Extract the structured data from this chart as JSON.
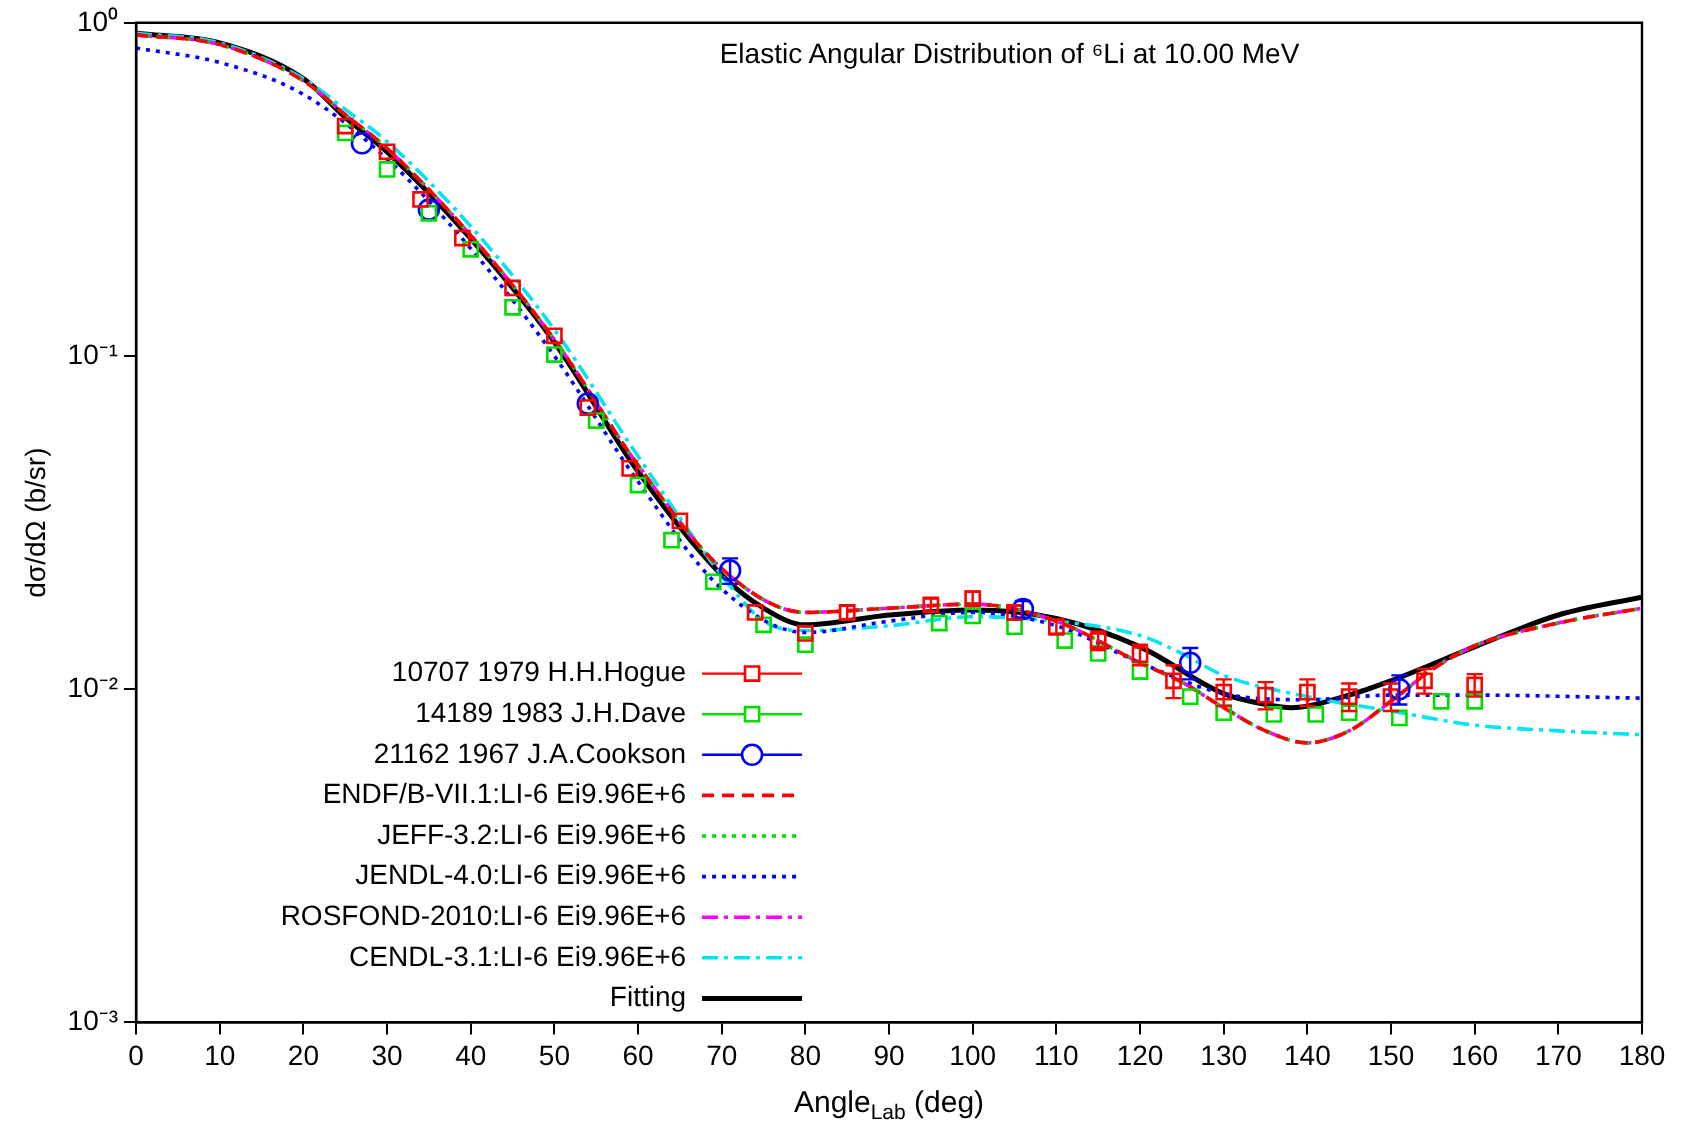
{
  "chart_data": {
    "type": "scatter",
    "title": "Elastic Angular Distribution of ⁶Li at 10.00 MeV",
    "xlabel": "Angle$_{Lab}$ (deg)",
    "ylabel": "dσ/dΩ (b/sr)",
    "xlim": [
      0,
      180
    ],
    "xticks": [
      0,
      10,
      20,
      30,
      40,
      50,
      60,
      70,
      80,
      90,
      100,
      110,
      120,
      130,
      140,
      150,
      160,
      170,
      180
    ],
    "ylim": [
      0.001,
      1
    ],
    "yticks": [
      {
        "value": 0.001,
        "label": "10⁻³"
      },
      {
        "value": 0.01,
        "label": "10⁻²"
      },
      {
        "value": 0.1,
        "label": "10⁻¹"
      },
      {
        "value": 1,
        "label": "10⁰"
      }
    ],
    "log": "y",
    "grid": false,
    "legend": "bottom left",
    "series": [
      {
        "name": "10707 1979 H.H.Hogue",
        "marker": "square",
        "color": "#ff0000",
        "x": [
          25,
          30,
          34,
          39,
          45,
          50,
          54,
          59,
          65,
          74,
          80,
          85,
          95,
          100,
          105,
          110,
          115,
          120,
          124,
          130,
          135,
          140,
          145,
          150,
          154,
          160
        ],
        "values": [
          0.49,
          0.41,
          0.295,
          0.226,
          0.16,
          0.115,
          0.07,
          0.046,
          0.032,
          0.017,
          0.0147,
          0.017,
          0.0179,
          0.0187,
          0.017,
          0.0154,
          0.014,
          0.0127,
          0.0106,
          0.0098,
          0.0096,
          0.0098,
          0.0095,
          0.0095,
          0.0106,
          0.0103
        ],
        "errors": [
          null,
          null,
          null,
          null,
          null,
          null,
          null,
          null,
          null,
          null,
          null,
          0.0008,
          0.0008,
          0.0009,
          0.0008,
          0.0008,
          0.0009,
          0.0009,
          0.0012,
          0.0009,
          0.0009,
          0.0009,
          0.0009,
          0.0009,
          0.0009,
          0.0008
        ]
      },
      {
        "name": "14189 1983 J.H.Dave",
        "marker": "square",
        "color": "#00dd00",
        "x": [
          25,
          30,
          35,
          40,
          45,
          50,
          55,
          60,
          64,
          69,
          75,
          80,
          96,
          100,
          105,
          111,
          115,
          120,
          126,
          130,
          136,
          141,
          145,
          151,
          156,
          160
        ],
        "values": [
          0.467,
          0.363,
          0.268,
          0.209,
          0.14,
          0.101,
          0.064,
          0.041,
          0.028,
          0.021,
          0.0156,
          0.0136,
          0.0158,
          0.0166,
          0.0154,
          0.014,
          0.0128,
          0.0113,
          0.0095,
          0.0085,
          0.0084,
          0.0084,
          0.0085,
          0.0082,
          0.0092,
          0.0092
        ]
      },
      {
        "name": "21162 1967 J.A.Cookson",
        "marker": "circle",
        "color": "#0000ff",
        "x": [
          27,
          35,
          54,
          71,
          106,
          126,
          151
        ],
        "values": [
          0.435,
          0.275,
          0.072,
          0.0227,
          0.0174,
          0.012,
          0.01
        ],
        "errors": [
          null,
          null,
          null,
          0.002,
          0.001,
          0.0013,
          0.001
        ]
      },
      {
        "name": "ENDF/B-VII.1:LI-6 Ei9.96E+6",
        "type": "line",
        "line_style": "dashed",
        "color": "#ff0000",
        "x": [
          0,
          10,
          20,
          25,
          30,
          40,
          50,
          60,
          70,
          80,
          90,
          100,
          110,
          120,
          125,
          130,
          135,
          140,
          145,
          150,
          155,
          160,
          170,
          180
        ],
        "values": [
          0.92,
          0.86,
          0.67,
          0.53,
          0.42,
          0.23,
          0.112,
          0.047,
          0.023,
          0.017,
          0.0175,
          0.018,
          0.016,
          0.012,
          0.0105,
          0.0088,
          0.0075,
          0.0069,
          0.0075,
          0.0092,
          0.0115,
          0.0135,
          0.0158,
          0.0175
        ]
      },
      {
        "name": "JEFF-3.2:LI-6 Ei9.96E+6",
        "type": "line",
        "line_style": "dotted",
        "color": "#00dd00",
        "x": [
          0,
          10,
          20,
          25,
          30,
          40,
          50,
          60,
          70,
          80,
          90,
          100,
          110,
          120,
          125,
          130,
          135,
          140,
          145,
          150,
          155,
          160,
          170,
          180
        ],
        "values": [
          0.92,
          0.86,
          0.67,
          0.53,
          0.42,
          0.23,
          0.112,
          0.047,
          0.023,
          0.017,
          0.0175,
          0.018,
          0.016,
          0.012,
          0.0105,
          0.0088,
          0.0075,
          0.0069,
          0.0075,
          0.0092,
          0.0115,
          0.0135,
          0.0158,
          0.0175
        ]
      },
      {
        "name": "JENDL-4.0:LI-6 Ei9.96E+6",
        "type": "line",
        "line_style": "dotted",
        "color": "#0000ff",
        "x": [
          0,
          10,
          20,
          30,
          40,
          50,
          60,
          70,
          80,
          90,
          100,
          110,
          120,
          130,
          140,
          150,
          160,
          180
        ],
        "values": [
          0.84,
          0.76,
          0.61,
          0.39,
          0.21,
          0.1,
          0.042,
          0.02,
          0.0148,
          0.016,
          0.017,
          0.0155,
          0.012,
          0.0097,
          0.0093,
          0.0096,
          0.0096,
          0.0094
        ]
      },
      {
        "name": "ROSFOND-2010:LI-6 Ei9.96E+6",
        "type": "line",
        "line_style": "dashdot",
        "color": "#ff00ff",
        "x": [
          0,
          10,
          20,
          25,
          30,
          40,
          50,
          60,
          70,
          80,
          90,
          100,
          110,
          120,
          125,
          130,
          135,
          140,
          145,
          150,
          155,
          160,
          170,
          180
        ],
        "values": [
          0.92,
          0.86,
          0.67,
          0.53,
          0.42,
          0.23,
          0.112,
          0.047,
          0.023,
          0.017,
          0.0175,
          0.018,
          0.016,
          0.012,
          0.0105,
          0.0088,
          0.0075,
          0.0069,
          0.0075,
          0.0092,
          0.0115,
          0.0135,
          0.0158,
          0.0175
        ]
      },
      {
        "name": "CENDL-3.1:LI-6 Ei9.96E+6",
        "type": "line",
        "line_style": "dashdot",
        "color": "#00e5ee",
        "x": [
          0,
          10,
          20,
          25,
          30,
          40,
          50,
          60,
          70,
          75,
          80,
          90,
          100,
          110,
          120,
          125,
          130,
          140,
          150,
          160,
          170,
          180
        ],
        "values": [
          0.93,
          0.87,
          0.68,
          0.55,
          0.44,
          0.245,
          0.12,
          0.05,
          0.022,
          0.016,
          0.015,
          0.0155,
          0.0165,
          0.016,
          0.0145,
          0.0128,
          0.011,
          0.0095,
          0.0086,
          0.0078,
          0.0075,
          0.0073
        ]
      },
      {
        "name": "Fitting",
        "type": "line",
        "line_style": "solid",
        "color": "#000000",
        "x": [
          0,
          10,
          20,
          25,
          30,
          40,
          50,
          60,
          70,
          75,
          80,
          90,
          100,
          110,
          120,
          130,
          135,
          138,
          145,
          150,
          160,
          170,
          180
        ],
        "values": [
          0.93,
          0.87,
          0.68,
          0.52,
          0.41,
          0.225,
          0.11,
          0.045,
          0.022,
          0.0175,
          0.0156,
          0.0167,
          0.0173,
          0.0163,
          0.0134,
          0.0097,
          0.009,
          0.0088,
          0.0096,
          0.0106,
          0.0134,
          0.0167,
          0.0189
        ]
      }
    ]
  }
}
